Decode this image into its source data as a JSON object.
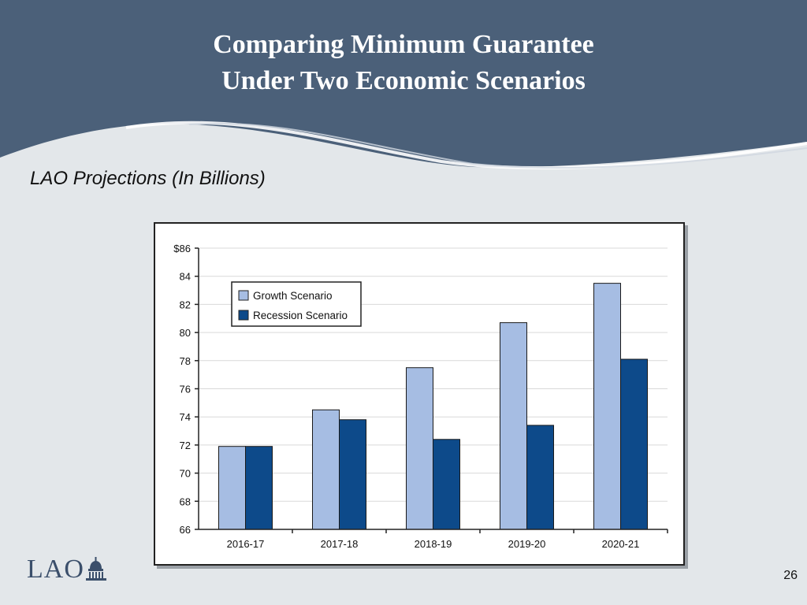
{
  "slide": {
    "title_line1": "Comparing Minimum Guarantee",
    "title_line2": "Under Two Economic Scenarios",
    "subtitle": "LAO Projections (In Billions)",
    "page_number": "26",
    "logo_text": "LAO",
    "logo_icon": "capitol-dome-icon"
  },
  "colors": {
    "header": "#4b6079",
    "background": "#e3e7ea",
    "growth": "#a6bde3",
    "recession": "#0d4a8a"
  },
  "chart_data": {
    "type": "bar",
    "title": "",
    "xlabel": "",
    "ylabel": "",
    "categories": [
      "2016-17",
      "2017-18",
      "2018-19",
      "2019-20",
      "2020-21"
    ],
    "series": [
      {
        "name": "Growth Scenario",
        "values": [
          71.9,
          74.5,
          77.5,
          80.7,
          83.5
        ]
      },
      {
        "name": "Recession Scenario",
        "values": [
          71.9,
          73.8,
          72.4,
          73.4,
          78.1
        ]
      }
    ],
    "ylim": [
      66,
      86
    ],
    "yticks": [
      66,
      68,
      70,
      72,
      74,
      76,
      78,
      80,
      82,
      84,
      86
    ],
    "ytick_labels": [
      "66",
      "68",
      "70",
      "72",
      "74",
      "76",
      "78",
      "80",
      "82",
      "84",
      "$86"
    ],
    "grid": true,
    "legend_position": "top-left"
  }
}
